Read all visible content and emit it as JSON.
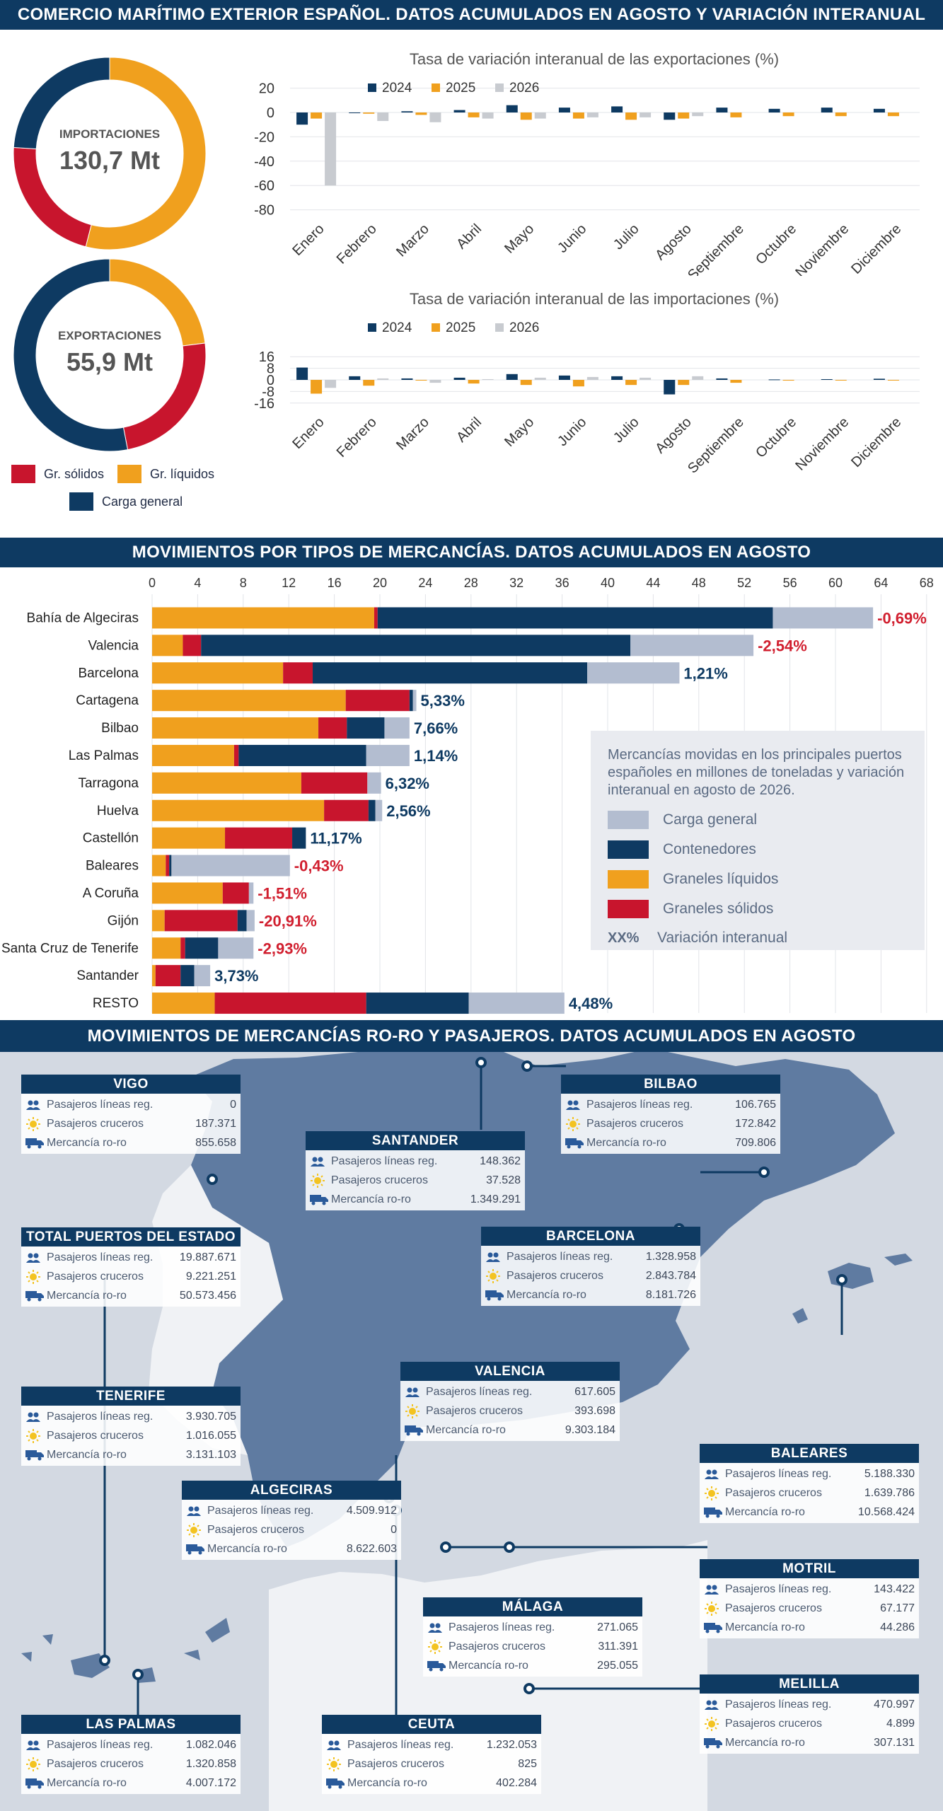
{
  "banners": {
    "top": "COMERCIO MARÍTIMO EXTERIOR ESPAÑOL. DATOS ACUMULADOS EN AGOSTO Y VARIACIÓN INTERANUAL",
    "middle": "MOVIMIENTOS POR TIPOS DE MERCANCÍAS. DATOS ACUMULADOS EN AGOSTO",
    "bottom": "MOVIMIENTOS DE MERCANCÍAS RO-RO Y PASAJEROS.  DATOS ACUMULADOS EN AGOSTO"
  },
  "colors": {
    "navy": "#0e3a62",
    "orange": "#f0a01e",
    "red": "#c8152d",
    "grey": "#b3bdd0",
    "lightgrey": "#c8cbd0",
    "pos_text": "#0e3a62",
    "neg_text": "#d11f2f"
  },
  "donut_legend": {
    "solidos": "Gr. sólidos",
    "liquidos": "Gr. líquidos",
    "general": "Carga general"
  },
  "chart_data": [
    {
      "type": "pie",
      "title": "IMPORTACIONES",
      "value_label": "130,7 Mt",
      "categories": [
        "Gr. líquidos",
        "Gr. sólidos",
        "Carga general"
      ],
      "values": [
        54,
        22,
        24
      ]
    },
    {
      "type": "pie",
      "title": "EXPORTACIONES",
      "value_label": "55,9 Mt",
      "categories": [
        "Gr. líquidos",
        "Gr. sólidos",
        "Carga general"
      ],
      "values": [
        23,
        24,
        53
      ]
    },
    {
      "type": "bar",
      "title": "Tasa de variación interanual de las exportaciones (%)",
      "categories": [
        "Enero",
        "Febrero",
        "Marzo",
        "Abril",
        "Mayo",
        "Junio",
        "Julio",
        "Agosto",
        "Septiembre",
        "Octubre",
        "Noviembre",
        "Diciembre"
      ],
      "ylim": [
        -80,
        20
      ],
      "yticks": [
        20,
        0,
        -20,
        -40,
        -60,
        -80
      ],
      "legend_position": "top-left",
      "series": [
        {
          "name": "2024",
          "values": [
            -10,
            0,
            1,
            2,
            6,
            4,
            5,
            -6,
            4,
            3,
            4,
            3
          ]
        },
        {
          "name": "2025",
          "values": [
            -5,
            -1,
            -2,
            -4,
            -6,
            -5,
            -6,
            -5,
            -4,
            -3,
            -3,
            -3
          ]
        },
        {
          "name": "2026",
          "values": [
            -60,
            -7,
            -8,
            -5,
            -5,
            -4,
            -4,
            -3,
            null,
            null,
            null,
            null
          ]
        }
      ]
    },
    {
      "type": "bar",
      "title": "Tasa de variación interanual de las importaciones (%)",
      "categories": [
        "Enero",
        "Febrero",
        "Marzo",
        "Abril",
        "Mayo",
        "Junio",
        "Julio",
        "Agosto",
        "Septiembre",
        "Octubre",
        "Noviembre",
        "Diciembre"
      ],
      "ylim": [
        -16,
        16
      ],
      "yticks": [
        16,
        8,
        0,
        -8,
        -16
      ],
      "legend_position": "top-left",
      "series": [
        {
          "name": "2024",
          "values": [
            8.5,
            2.5,
            1,
            1.5,
            4,
            3,
            2.5,
            -10,
            1,
            0.3,
            0.5,
            0.8
          ]
        },
        {
          "name": "2025",
          "values": [
            -9.5,
            -4,
            0,
            -2.5,
            -3.5,
            -4.5,
            -3.5,
            -3.5,
            -2,
            -0.5,
            -0.3,
            -0.3
          ]
        },
        {
          "name": "2026",
          "values": [
            -5.5,
            1,
            -2,
            0.5,
            1.5,
            2,
            1.5,
            2.5,
            null,
            null,
            null,
            null
          ]
        }
      ]
    },
    {
      "type": "bar",
      "orientation": "horizontal",
      "stacked": true,
      "title": "",
      "xlim": [
        0,
        68
      ],
      "xticks": [
        0,
        4,
        8,
        12,
        16,
        20,
        24,
        28,
        32,
        36,
        40,
        44,
        48,
        52,
        56,
        60,
        64,
        68
      ],
      "categories": [
        "Bahía de Algeciras",
        "Valencia",
        "Barcelona",
        "Cartagena",
        "Bilbao",
        "Las Palmas",
        "Tarragona",
        "Huelva",
        "Castellón",
        "Baleares",
        "A Coruña",
        "Gijón",
        "Santa Cruz de Tenerife",
        "Santander",
        "RESTO"
      ],
      "series": [
        {
          "name": "Graneles líquidos",
          "values": [
            19.5,
            2.7,
            11.5,
            17,
            14.6,
            7.2,
            13.1,
            15.1,
            6.4,
            1.2,
            6.2,
            1.1,
            2.5,
            0.3,
            5.5
          ]
        },
        {
          "name": "Graneles sólidos",
          "values": [
            0.3,
            1.6,
            2.6,
            5.6,
            2.5,
            0.4,
            5.8,
            3.9,
            5.9,
            0.3,
            2.3,
            6.4,
            0.4,
            2.2,
            13.3
          ]
        },
        {
          "name": "Contenedores",
          "values": [
            34.7,
            37.7,
            24.1,
            0.3,
            3.3,
            11.2,
            0,
            0.6,
            1.2,
            0.2,
            0,
            0.8,
            2.9,
            1.2,
            9
          ]
        },
        {
          "name": "Carga general",
          "values": [
            8.8,
            10.8,
            8.1,
            0.3,
            2.2,
            3.8,
            1.2,
            0.6,
            0,
            10.4,
            0.4,
            0.7,
            3.1,
            1.4,
            8.4
          ]
        }
      ],
      "variation_labels": [
        "-0,69%",
        "-2,54%",
        "1,21%",
        "5,33%",
        "7,66%",
        "1,14%",
        "6,32%",
        "2,56%",
        "11,17%",
        "-0,43%",
        "-1,51%",
        "-20,91%",
        "-2,93%",
        "3,73%",
        "4,48%"
      ]
    }
  ],
  "annual_legend": {
    "y2024": "2024",
    "y2025": "2025",
    "y2026": "2026"
  },
  "ports_legend": {
    "description": "Mercancías movidas en los principales puertos españoles en millones de toneladas y variación interanual en agosto de 2026.",
    "general": "Carga general",
    "containers": "Contenedores",
    "liquids": "Graneles líquidos",
    "solids": "Graneles sólidos",
    "xx": "XX%",
    "variation": "Variación interanual"
  },
  "map_cards": [
    {
      "name": "VIGO",
      "rows": [
        [
          "Pasajeros líneas reg.",
          "0"
        ],
        [
          "Pasajeros cruceros",
          "187.371"
        ],
        [
          "Mercancía ro-ro",
          "855.658"
        ]
      ]
    },
    {
      "name": "SANTANDER",
      "rows": [
        [
          "Pasajeros líneas reg.",
          "148.362"
        ],
        [
          "Pasajeros cruceros",
          "37.528"
        ],
        [
          "Mercancía ro-ro",
          "1.349.291"
        ]
      ]
    },
    {
      "name": "BILBAO",
      "rows": [
        [
          "Pasajeros líneas reg.",
          "106.765"
        ],
        [
          "Pasajeros cruceros",
          "172.842"
        ],
        [
          "Mercancía ro-ro",
          "709.806"
        ]
      ]
    },
    {
      "name": "TOTAL PUERTOS DEL ESTADO",
      "rows": [
        [
          "Pasajeros líneas reg.",
          "19.887.671"
        ],
        [
          "Pasajeros cruceros",
          "9.221.251"
        ],
        [
          "Mercancía ro-ro",
          "50.573.456"
        ]
      ]
    },
    {
      "name": "BARCELONA",
      "rows": [
        [
          "Pasajeros líneas reg.",
          "1.328.958"
        ],
        [
          "Pasajeros cruceros",
          "2.843.784"
        ],
        [
          "Mercancía ro-ro",
          "8.181.726"
        ]
      ]
    },
    {
      "name": "VALENCIA",
      "rows": [
        [
          "Pasajeros líneas reg.",
          "617.605"
        ],
        [
          "Pasajeros cruceros",
          "393.698"
        ],
        [
          "Mercancía ro-ro",
          "9.303.184"
        ]
      ]
    },
    {
      "name": "TENERIFE",
      "rows": [
        [
          "Pasajeros líneas reg.",
          "3.930.705"
        ],
        [
          "Pasajeros cruceros",
          "1.016.055"
        ],
        [
          "Mercancía ro-ro",
          "3.131.103"
        ]
      ]
    },
    {
      "name": "BALEARES",
      "rows": [
        [
          "Pasajeros líneas reg.",
          "5.188.330"
        ],
        [
          "Pasajeros cruceros",
          "1.639.786"
        ],
        [
          "Mercancía ro-ro",
          "10.568.424"
        ]
      ]
    },
    {
      "name": "ALGECIRAS",
      "rows": [
        [
          "Pasajeros líneas reg.",
          "4.509.912"
        ],
        [
          "Pasajeros cruceros",
          "0"
        ],
        [
          "Mercancía ro-ro",
          "8.622.603"
        ]
      ]
    },
    {
      "name": "MOTRIL",
      "rows": [
        [
          "Pasajeros líneas reg.",
          "143.422"
        ],
        [
          "Pasajeros cruceros",
          "67.177"
        ],
        [
          "Mercancía ro-ro",
          "44.286"
        ]
      ]
    },
    {
      "name": "MÁLAGA",
      "rows": [
        [
          "Pasajeros líneas reg.",
          "271.065"
        ],
        [
          "Pasajeros cruceros",
          "311.391"
        ],
        [
          "Mercancía ro-ro",
          "295.055"
        ]
      ]
    },
    {
      "name": "MELILLA",
      "rows": [
        [
          "Pasajeros líneas reg.",
          "470.997"
        ],
        [
          "Pasajeros cruceros",
          "4.899"
        ],
        [
          "Mercancía ro-ro",
          "307.131"
        ]
      ]
    },
    {
      "name": "LAS PALMAS",
      "rows": [
        [
          "Pasajeros líneas reg.",
          "1.082.046"
        ],
        [
          "Pasajeros cruceros",
          "1.320.858"
        ],
        [
          "Mercancía ro-ro",
          "4.007.172"
        ]
      ]
    },
    {
      "name": "CEUTA",
      "rows": [
        [
          "Pasajeros líneas reg.",
          "1.232.053"
        ],
        [
          "Pasajeros cruceros",
          "825"
        ],
        [
          "Mercancía ro-ro",
          "402.284"
        ]
      ]
    }
  ]
}
